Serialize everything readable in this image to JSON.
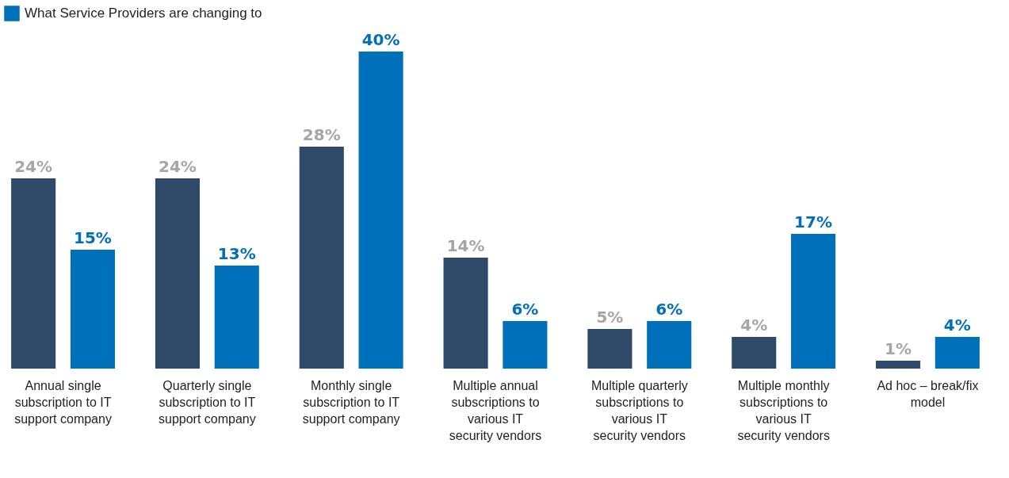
{
  "chart_data": {
    "type": "bar",
    "categories": [
      "Annual single subscription to IT support company",
      "Quarterly single subscription to IT support company",
      "Monthly single subscription to IT support company",
      "Multiple annual subscriptions to various IT security vendors",
      "Multiple quarterly subscriptions to various IT security vendors",
      "Multiple monthly subscriptions to various IT security vendors",
      "Ad hoc – break/fix model"
    ],
    "series": [
      {
        "color": "#2f4a68",
        "values": [
          24,
          24,
          28,
          14,
          5,
          4,
          1
        ],
        "value_labels": [
          "24%",
          "24%",
          "28%",
          "14%",
          "5%",
          "4%",
          "1%"
        ]
      },
      {
        "name": "What Service Providers are changing to",
        "color": "#0070ba",
        "values": [
          15,
          13,
          40,
          6,
          6,
          17,
          4
        ],
        "value_labels": [
          "15%",
          "13%",
          "40%",
          "6%",
          "6%",
          "17%",
          "4%"
        ]
      }
    ],
    "legend": "top left"
  }
}
